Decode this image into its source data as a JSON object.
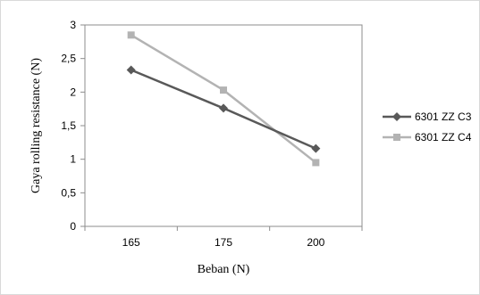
{
  "chart_data": {
    "type": "line",
    "categories": [
      "165",
      "175",
      "200"
    ],
    "series": [
      {
        "name": "6301 ZZ C3",
        "values": [
          2.33,
          1.76,
          1.16
        ],
        "color": "#595959",
        "marker": "diamond"
      },
      {
        "name": "6301 ZZ C4",
        "values": [
          2.85,
          2.03,
          0.95
        ],
        "color": "#b3b3b3",
        "marker": "square"
      }
    ],
    "xlabel": "Beban (N)",
    "ylabel": "Gaya rolling  resistance  (N)",
    "ylim": [
      0,
      3
    ],
    "yticks": [
      "0",
      "0,5",
      "1",
      "1,5",
      "2",
      "2,5",
      "3"
    ],
    "grid": false,
    "legend": "right"
  }
}
